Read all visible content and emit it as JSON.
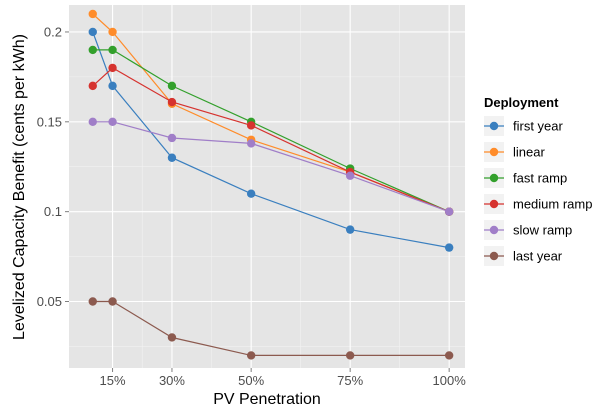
{
  "chart_data": {
    "type": "line",
    "xlabel": "PV Penetration",
    "ylabel": "Levelized Capacity Benefit (cents per kWh)",
    "x": [
      10,
      15,
      30,
      50,
      75,
      100
    ],
    "x_ticks": [
      15,
      30,
      50,
      75,
      100
    ],
    "x_tick_labels": [
      "15%",
      "30%",
      "50%",
      "75%",
      "100%"
    ],
    "xlim": [
      4,
      104
    ],
    "y_ticks": [
      0.05,
      0.1,
      0.15,
      0.2
    ],
    "y_tick_labels": [
      "0.05",
      "0.1",
      "0.15",
      "0.2"
    ],
    "ylim": [
      0.013,
      0.215
    ],
    "grid": true,
    "legend": {
      "title": "Deployment",
      "position": "right"
    },
    "series": [
      {
        "name": "first year",
        "color": "#3a7fbf",
        "values": [
          0.2,
          0.17,
          0.13,
          0.11,
          0.09,
          0.08
        ]
      },
      {
        "name": "linear",
        "color": "#ff8c2a",
        "values": [
          0.21,
          0.2,
          0.16,
          0.14,
          0.122,
          0.1
        ]
      },
      {
        "name": "fast ramp",
        "color": "#33a02c",
        "values": [
          0.19,
          0.19,
          0.17,
          0.15,
          0.124,
          0.1
        ]
      },
      {
        "name": "medium ramp",
        "color": "#d6332f",
        "values": [
          0.17,
          0.18,
          0.161,
          0.148,
          0.122,
          0.1
        ]
      },
      {
        "name": "slow ramp",
        "color": "#a07ec8",
        "values": [
          0.15,
          0.15,
          0.141,
          0.138,
          0.12,
          0.1
        ]
      },
      {
        "name": "last year",
        "color": "#8c5a4f",
        "values": [
          0.05,
          0.05,
          0.03,
          0.02,
          0.02,
          0.02
        ]
      }
    ]
  }
}
